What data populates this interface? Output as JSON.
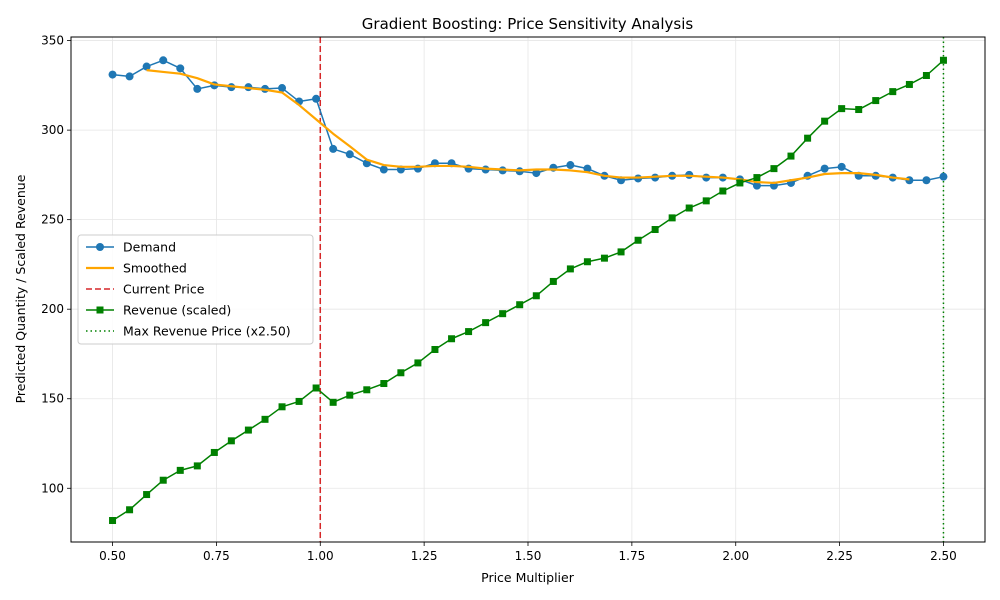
{
  "chart_data": {
    "type": "line",
    "title": "Gradient Boosting: Price Sensitivity Analysis",
    "xlabel": "Price Multiplier",
    "ylabel": "Predicted Quantity / Scaled Revenue",
    "xlim": [
      0.4,
      2.6
    ],
    "ylim": [
      70,
      352
    ],
    "x_ticks": [
      0.5,
      0.75,
      1.0,
      1.25,
      1.5,
      1.75,
      2.0,
      2.25,
      2.5
    ],
    "x_tick_labels": [
      "0.50",
      "0.75",
      "1.00",
      "1.25",
      "1.50",
      "1.75",
      "2.00",
      "2.25",
      "2.50"
    ],
    "y_ticks": [
      100,
      150,
      200,
      250,
      300,
      350
    ],
    "y_tick_labels": [
      "100",
      "150",
      "200",
      "250",
      "300",
      "350"
    ],
    "grid": true,
    "legend_position": "center-left",
    "x": [
      0.5,
      0.541,
      0.582,
      0.622,
      0.663,
      0.704,
      0.745,
      0.786,
      0.827,
      0.867,
      0.908,
      0.949,
      0.99,
      1.031,
      1.071,
      1.112,
      1.153,
      1.194,
      1.235,
      1.276,
      1.316,
      1.357,
      1.398,
      1.439,
      1.48,
      1.52,
      1.561,
      1.602,
      1.643,
      1.684,
      1.724,
      1.765,
      1.806,
      1.847,
      1.888,
      1.929,
      1.969,
      2.01,
      2.051,
      2.092,
      2.133,
      2.173,
      2.214,
      2.255,
      2.296,
      2.337,
      2.378,
      2.418,
      2.459,
      2.5
    ],
    "series": [
      {
        "name": "Demand",
        "color": "#1f77b4",
        "marker": "circle",
        "values": [
          331,
          330,
          335.5,
          339,
          334.5,
          323,
          325,
          324,
          324,
          323,
          323.5,
          316,
          317.5,
          289.5,
          286.5,
          281.5,
          278,
          278,
          278.5,
          281.5,
          281.5,
          278.5,
          278,
          277.5,
          277,
          276,
          279,
          280.5,
          278.5,
          274.5,
          272,
          273,
          273.5,
          274.5,
          275,
          273.5,
          273.5,
          272.5,
          269,
          269,
          270.5,
          274.5,
          278.5,
          279.5,
          274.5,
          274.5,
          273.5,
          272,
          272,
          274
        ]
      },
      {
        "name": "Smoothed",
        "color": "#ffa500",
        "marker": "none",
        "x": [
          0.582,
          0.622,
          0.663,
          0.704,
          0.745,
          0.786,
          0.827,
          0.867,
          0.908,
          0.949,
          0.99,
          1.031,
          1.071,
          1.112,
          1.153,
          1.194,
          1.235,
          1.276,
          1.316,
          1.357,
          1.398,
          1.439,
          1.48,
          1.52,
          1.561,
          1.602,
          1.643,
          1.684,
          1.724,
          1.765,
          1.806,
          1.847,
          1.888,
          1.929,
          1.969,
          2.01,
          2.051,
          2.092,
          2.133,
          2.173,
          2.214,
          2.255,
          2.296,
          2.337,
          2.378,
          2.418
        ],
        "values": [
          333.5,
          332.5,
          331.5,
          329,
          325.5,
          324.5,
          323.5,
          322.5,
          321,
          314,
          306,
          298,
          291,
          283.5,
          280.5,
          279.5,
          279.5,
          280,
          280,
          279.5,
          278.5,
          278,
          277.5,
          278,
          278,
          277.5,
          276.5,
          274.5,
          273.5,
          273.5,
          274,
          274.5,
          274.5,
          274,
          273.5,
          272.5,
          271,
          270.5,
          272,
          273.5,
          275.5,
          276,
          276,
          275,
          273.5,
          272.5
        ]
      },
      {
        "name": "Revenue (scaled)",
        "color": "#008000",
        "marker": "square",
        "values": [
          82,
          88,
          96.5,
          104.5,
          110,
          112.5,
          120,
          126.5,
          132.5,
          138.5,
          145.5,
          148.5,
          156,
          148,
          152,
          155,
          158.5,
          164.5,
          170,
          177.5,
          183.5,
          187.5,
          192.5,
          197.5,
          202.5,
          207.5,
          215.5,
          222.5,
          226.5,
          228.5,
          232,
          238.5,
          244.5,
          251,
          256.5,
          260.5,
          266,
          270.5,
          273.5,
          278.5,
          285.5,
          295.5,
          305,
          312,
          311.5,
          316.5,
          321.5,
          325.5,
          330.5,
          339
        ]
      }
    ],
    "reference_lines": [
      {
        "name": "Current Price",
        "x": 1.0,
        "color": "#d62728",
        "style": "dashed"
      },
      {
        "name": "Max Revenue Price (x2.50)",
        "x": 2.5,
        "color": "#008000",
        "style": "dotted"
      }
    ]
  }
}
